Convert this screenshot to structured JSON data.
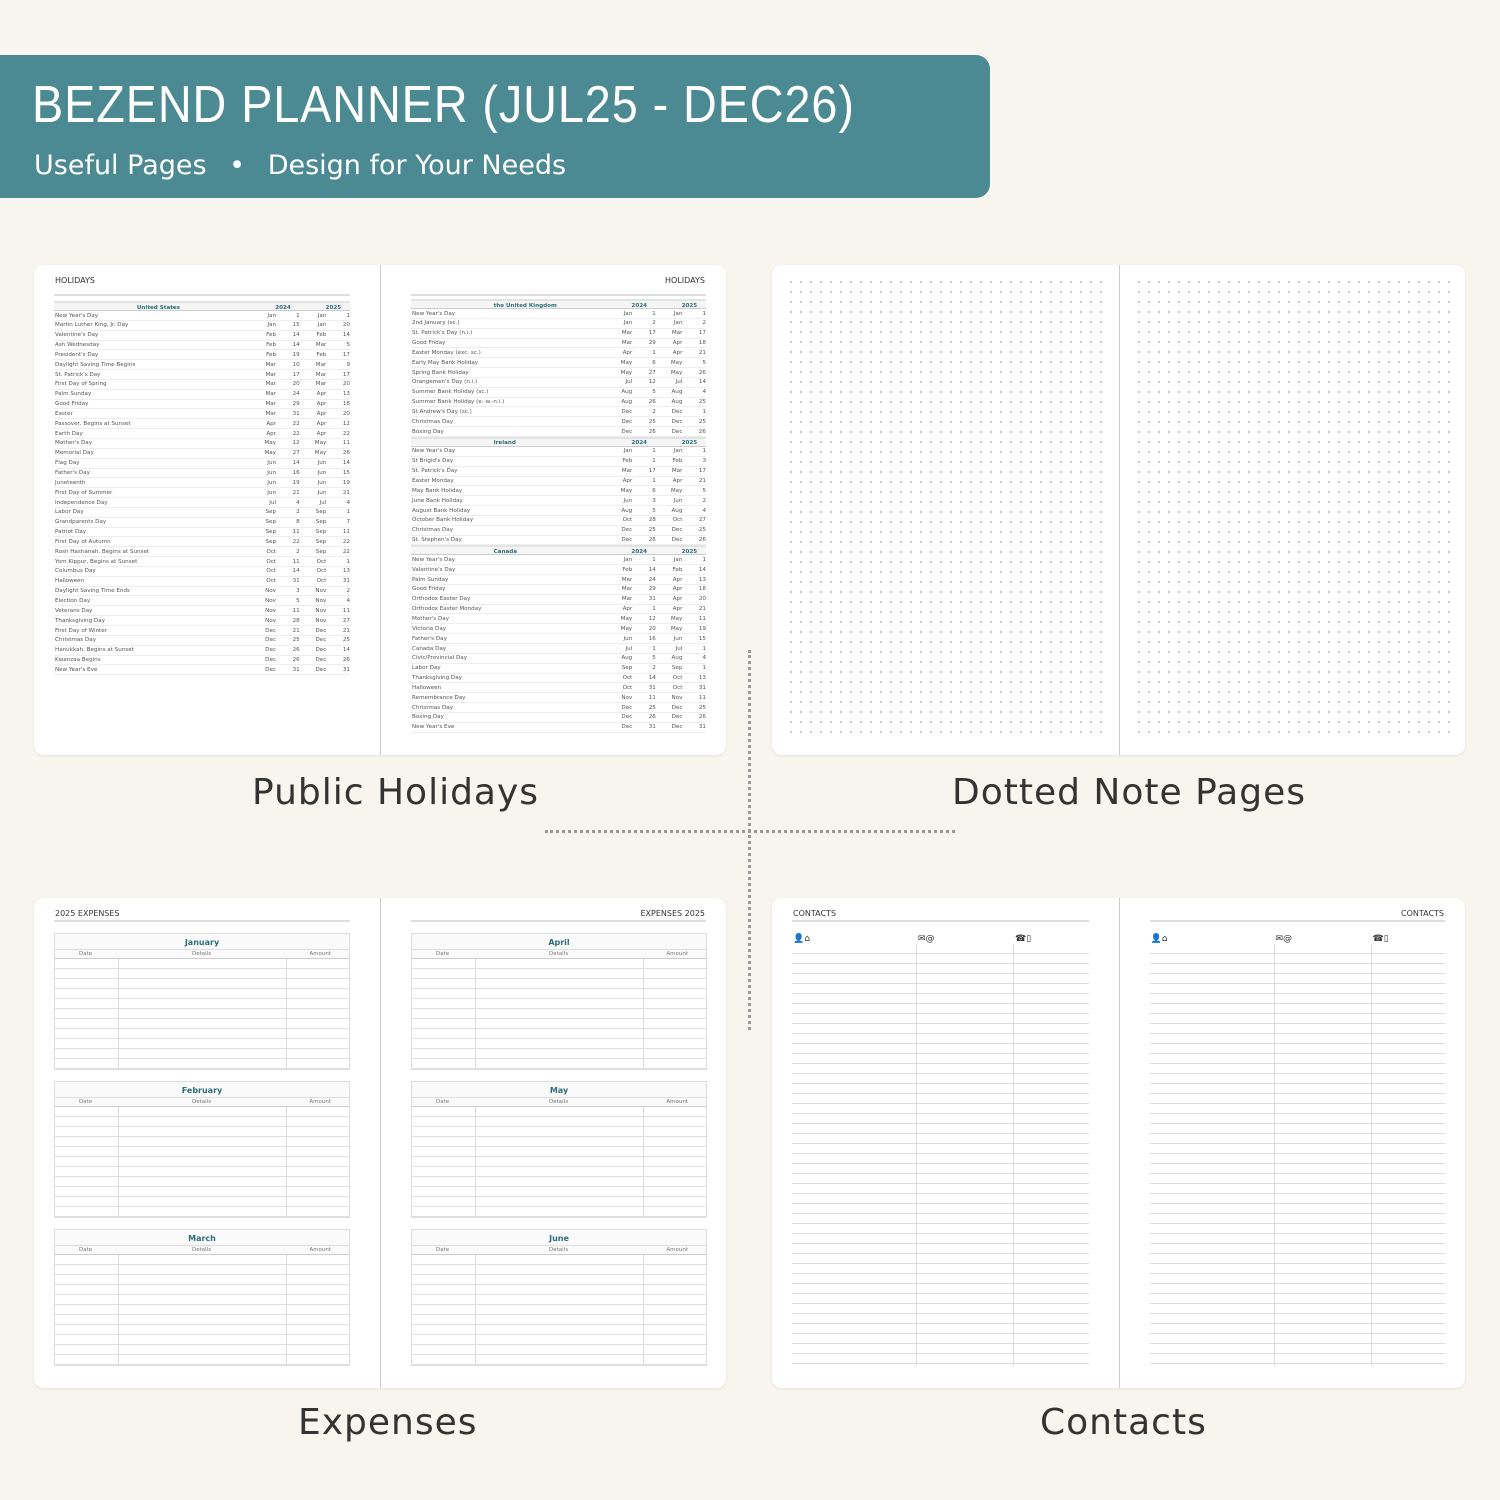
{
  "banner": {
    "title": "BEZEND PLANNER (JUL25 - DEC26)",
    "subtitle_left": "Useful Pages",
    "bullet": "•",
    "subtitle_right": "Design for Your Needs",
    "color": "#4b8a92"
  },
  "captions": {
    "holidays": "Public Holidays",
    "dotted": "Dotted Note Pages",
    "expenses": "Expenses",
    "contacts": "Contacts"
  },
  "holidays": {
    "title": "HOLIDAYS",
    "years": [
      "2024",
      "2025"
    ],
    "left": [
      {
        "country": "United States",
        "rows": [
          [
            "New Year's Day",
            "Jan",
            "1",
            "Jan",
            "1"
          ],
          [
            "Martin Luther King, Jr. Day",
            "Jan",
            "15",
            "Jan",
            "20"
          ],
          [
            "Valentine's Day",
            "Feb",
            "14",
            "Feb",
            "14"
          ],
          [
            "Ash Wednesday",
            "Feb",
            "14",
            "Mar",
            "5"
          ],
          [
            "President's Day",
            "Feb",
            "19",
            "Feb",
            "17"
          ],
          [
            "Daylight Saving Time Begins",
            "Mar",
            "10",
            "Mar",
            "9"
          ],
          [
            "St. Patrick's Day",
            "Mar",
            "17",
            "Mar",
            "17"
          ],
          [
            "First Day of Spring",
            "Mar",
            "20",
            "Mar",
            "20"
          ],
          [
            "Palm Sunday",
            "Mar",
            "24",
            "Apr",
            "13"
          ],
          [
            "Good Friday",
            "Mar",
            "29",
            "Apr",
            "18"
          ],
          [
            "Easter",
            "Mar",
            "31",
            "Apr",
            "20"
          ],
          [
            "Passover, Begins at Sunset",
            "Apr",
            "22",
            "Apr",
            "12"
          ],
          [
            "Earth Day",
            "Apr",
            "22",
            "Apr",
            "22"
          ],
          [
            "Mother's Day",
            "May",
            "12",
            "May",
            "11"
          ],
          [
            "Memorial Day",
            "May",
            "27",
            "May",
            "26"
          ],
          [
            "Flag Day",
            "Jun",
            "14",
            "Jun",
            "14"
          ],
          [
            "Father's Day",
            "Jun",
            "16",
            "Jun",
            "15"
          ],
          [
            "Juneteenth",
            "Jun",
            "19",
            "Jun",
            "19"
          ],
          [
            "First Day of Summer",
            "Jun",
            "21",
            "Jun",
            "21"
          ],
          [
            "Independence Day",
            "Jul",
            "4",
            "Jul",
            "4"
          ],
          [
            "Labor Day",
            "Sep",
            "2",
            "Sep",
            "1"
          ],
          [
            "Grandparents Day",
            "Sep",
            "8",
            "Sep",
            "7"
          ],
          [
            "Patriot Day",
            "Sep",
            "11",
            "Sep",
            "11"
          ],
          [
            "First Day of Autumn",
            "Sep",
            "22",
            "Sep",
            "22"
          ],
          [
            "Rosh Hashanah, Begins at Sunset",
            "Oct",
            "2",
            "Sep",
            "22"
          ],
          [
            "Yom Kippur, Begins at Sunset",
            "Oct",
            "11",
            "Oct",
            "1"
          ],
          [
            "Columbus Day",
            "Oct",
            "14",
            "Oct",
            "13"
          ],
          [
            "Halloween",
            "Oct",
            "31",
            "Oct",
            "31"
          ],
          [
            "Daylight Saving Time Ends",
            "Nov",
            "3",
            "Nov",
            "2"
          ],
          [
            "Election Day",
            "Nov",
            "5",
            "Nov",
            "4"
          ],
          [
            "Veterans Day",
            "Nov",
            "11",
            "Nov",
            "11"
          ],
          [
            "Thanksgiving Day",
            "Nov",
            "28",
            "Nov",
            "27"
          ],
          [
            "First Day of Winter",
            "Dec",
            "21",
            "Dec",
            "21"
          ],
          [
            "Christmas Day",
            "Dec",
            "25",
            "Dec",
            "25"
          ],
          [
            "Hanukkah, Begins at Sunset",
            "Dec",
            "26",
            "Dec",
            "14"
          ],
          [
            "Kwanzaa Begins",
            "Dec",
            "26",
            "Dec",
            "26"
          ],
          [
            "New Year's Eve",
            "Dec",
            "31",
            "Dec",
            "31"
          ]
        ]
      }
    ],
    "right": [
      {
        "country": "the United Kingdom",
        "rows": [
          [
            "New Year's Day",
            "Jan",
            "1",
            "Jan",
            "1"
          ],
          [
            "2nd January (sc.)",
            "Jan",
            "2",
            "Jan",
            "2"
          ],
          [
            "St. Patrick's Day (n.i.)",
            "Mar",
            "17",
            "Mar",
            "17"
          ],
          [
            "Good Friday",
            "Mar",
            "29",
            "Apr",
            "18"
          ],
          [
            "Easter Monday (exc. sc.)",
            "Apr",
            "1",
            "Apr",
            "21"
          ],
          [
            "Early May Bank Holiday",
            "May",
            "6",
            "May",
            "5"
          ],
          [
            "Spring Bank Holiday",
            "May",
            "27",
            "May",
            "26"
          ],
          [
            "Orangemen's Day (n.i.)",
            "Jul",
            "12",
            "Jul",
            "14"
          ],
          [
            "Summer Bank Holiday (sc.)",
            "Aug",
            "5",
            "Aug",
            "4"
          ],
          [
            "Summer Bank Holiday (e.-w.-n.i.)",
            "Aug",
            "26",
            "Aug",
            "25"
          ],
          [
            "St Andrew's Day (sc.)",
            "Dec",
            "2",
            "Dec",
            "1"
          ],
          [
            "Christmas Day",
            "Dec",
            "25",
            "Dec",
            "25"
          ],
          [
            "Boxing Day",
            "Dec",
            "26",
            "Dec",
            "26"
          ]
        ]
      },
      {
        "country": "Ireland",
        "rows": [
          [
            "New Year's Day",
            "Jan",
            "1",
            "Jan",
            "1"
          ],
          [
            "St Brigid's Day",
            "Feb",
            "1",
            "Feb",
            "3"
          ],
          [
            "St. Patrick's Day",
            "Mar",
            "17",
            "Mar",
            "17"
          ],
          [
            "Easter Monday",
            "Apr",
            "1",
            "Apr",
            "21"
          ],
          [
            "May Bank Holiday",
            "May",
            "6",
            "May",
            "5"
          ],
          [
            "June Bank Holiday",
            "Jun",
            "3",
            "Jun",
            "2"
          ],
          [
            "August Bank Holiday",
            "Aug",
            "5",
            "Aug",
            "4"
          ],
          [
            "October Bank Holiday",
            "Oct",
            "28",
            "Oct",
            "27"
          ],
          [
            "Christmas Day",
            "Dec",
            "25",
            "Dec",
            "25"
          ],
          [
            "St. Stephen's Day",
            "Dec",
            "26",
            "Dec",
            "26"
          ]
        ]
      },
      {
        "country": "Canada",
        "rows": [
          [
            "New Year's Day",
            "Jan",
            "1",
            "Jan",
            "1"
          ],
          [
            "Valentine's Day",
            "Feb",
            "14",
            "Feb",
            "14"
          ],
          [
            "Palm Sunday",
            "Mar",
            "24",
            "Apr",
            "13"
          ],
          [
            "Good Friday",
            "Mar",
            "29",
            "Apr",
            "18"
          ],
          [
            "Orthodox Easter Day",
            "Mar",
            "31",
            "Apr",
            "20"
          ],
          [
            "Orthodox Easter Monday",
            "Apr",
            "1",
            "Apr",
            "21"
          ],
          [
            "Mother's Day",
            "May",
            "12",
            "May",
            "11"
          ],
          [
            "Victoria Day",
            "May",
            "20",
            "May",
            "19"
          ],
          [
            "Father's Day",
            "Jun",
            "16",
            "Jun",
            "15"
          ],
          [
            "Canada Day",
            "Jul",
            "1",
            "Jul",
            "1"
          ],
          [
            "Civic/Provincial Day",
            "Aug",
            "5",
            "Aug",
            "4"
          ],
          [
            "Labor Day",
            "Sep",
            "2",
            "Sep",
            "1"
          ],
          [
            "Thanksgiving Day",
            "Oct",
            "14",
            "Oct",
            "13"
          ],
          [
            "Halloween",
            "Oct",
            "31",
            "Oct",
            "31"
          ],
          [
            "Remembrance Day",
            "Nov",
            "11",
            "Nov",
            "11"
          ],
          [
            "Christmas Day",
            "Dec",
            "25",
            "Dec",
            "25"
          ],
          [
            "Boxing Day",
            "Dec",
            "26",
            "Dec",
            "26"
          ],
          [
            "New Year's Eve",
            "Dec",
            "31",
            "Dec",
            "31"
          ]
        ]
      }
    ]
  },
  "expenses": {
    "title_left": "2025 EXPENSES",
    "title_right": "EXPENSES 2025",
    "columns": [
      "Date",
      "Details",
      "Amount"
    ],
    "months_left": [
      "January",
      "February",
      "March"
    ],
    "months_right": [
      "April",
      "May",
      "June"
    ]
  },
  "contacts": {
    "title": "CONTACTS",
    "icons": [
      "person-home-icon",
      "mail-at-icon",
      "phone-mobile-icon"
    ],
    "icon_glyphs": [
      "👤⌂",
      "✉@",
      "☎▯"
    ]
  }
}
